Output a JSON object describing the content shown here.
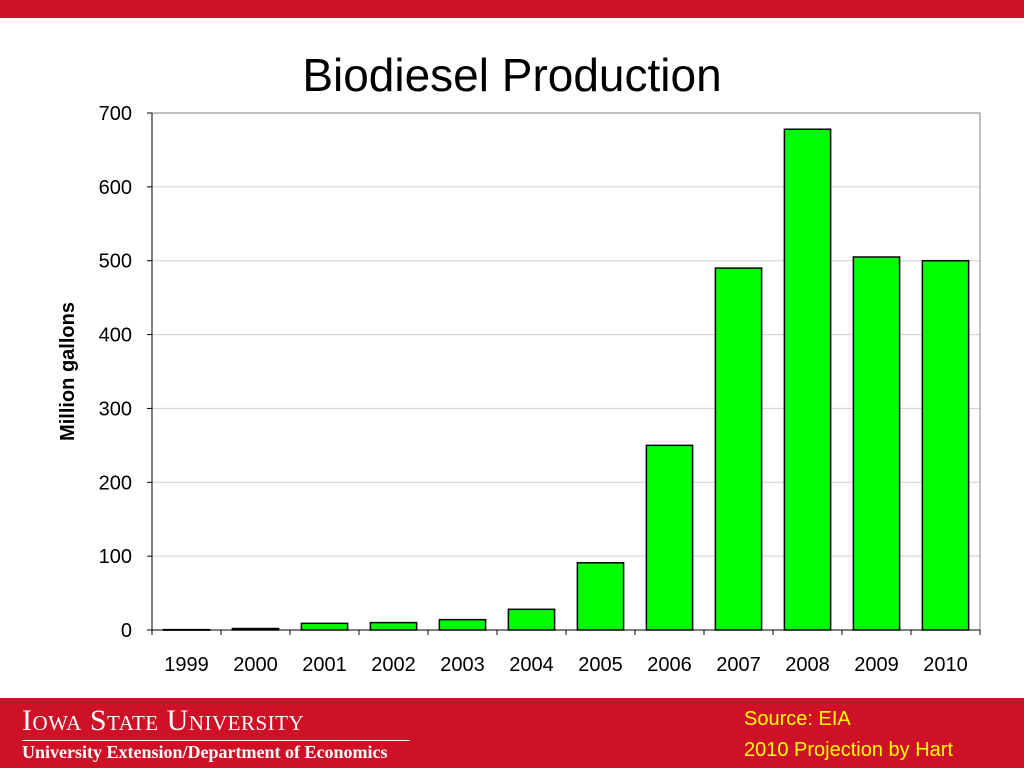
{
  "slide": {
    "title": "Biodiesel Production",
    "colors": {
      "accent": "#ce1126",
      "bar": "#00ff00",
      "footer_text": "#ffff00"
    }
  },
  "footer": {
    "university": "Iowa State University",
    "department": "University Extension/Department of Economics",
    "source": "Source: EIA",
    "projection": "2010 Projection by Hart"
  },
  "chart_data": {
    "type": "bar",
    "title": "Biodiesel Production",
    "categories": [
      "1999",
      "2000",
      "2001",
      "2002",
      "2003",
      "2004",
      "2005",
      "2006",
      "2007",
      "2008",
      "2009",
      "2010"
    ],
    "values": [
      0.5,
      2,
      9,
      10,
      14,
      28,
      91,
      250,
      490,
      678,
      505,
      500
    ],
    "xlabel": "",
    "ylabel": "Million gallons",
    "ylim": [
      0,
      700
    ],
    "yticks": [
      0,
      100,
      200,
      300,
      400,
      500,
      600,
      700
    ],
    "grid": true,
    "legend": "none",
    "bar_color": "#00ff00"
  }
}
